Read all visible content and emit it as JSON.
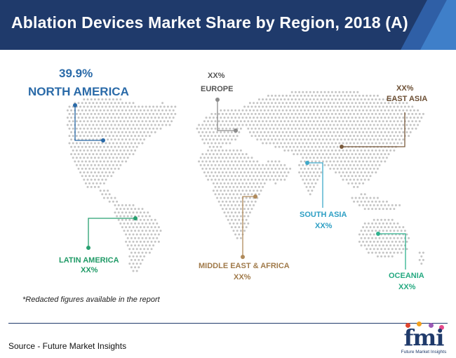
{
  "header": {
    "title": "Ablation Devices Market Share by Region, 2018 (A)"
  },
  "colors": {
    "header_bg": "#1f3a6b",
    "map_dots": "#c4c4c4",
    "north_america": "#2a6aa8",
    "europe": "#8c8c8c",
    "east_asia": "#7a5a3c",
    "south_asia": "#3fa9c9",
    "latin_america": "#28a070",
    "middle_east_africa": "#b08a5a",
    "oceania": "#2fb28e"
  },
  "chart_data": {
    "type": "map",
    "title": "Ablation Devices Market Share by Region, 2018 (A)",
    "regions": [
      {
        "id": "north_america",
        "name": "NORTH AMERICA",
        "value": "39.9%"
      },
      {
        "id": "europe",
        "name": "EUROPE",
        "value": "XX%"
      },
      {
        "id": "east_asia",
        "name": "EAST ASIA",
        "value": "XX%"
      },
      {
        "id": "south_asia",
        "name": "SOUTH ASIA",
        "value": "XX%"
      },
      {
        "id": "latin_america",
        "name": "LATIN AMERICA",
        "value": "XX%"
      },
      {
        "id": "middle_east_africa",
        "name": "MIDDLE EAST & AFRICA",
        "value": "XX%"
      },
      {
        "id": "oceania",
        "name": "OCEANIA",
        "value": "XX%"
      }
    ]
  },
  "note": "*Redacted figures available in the report",
  "footer": {
    "source": "Source - Future Market Insights"
  },
  "logo": {
    "word": "fmi",
    "tagline": "Future Market Insights"
  }
}
